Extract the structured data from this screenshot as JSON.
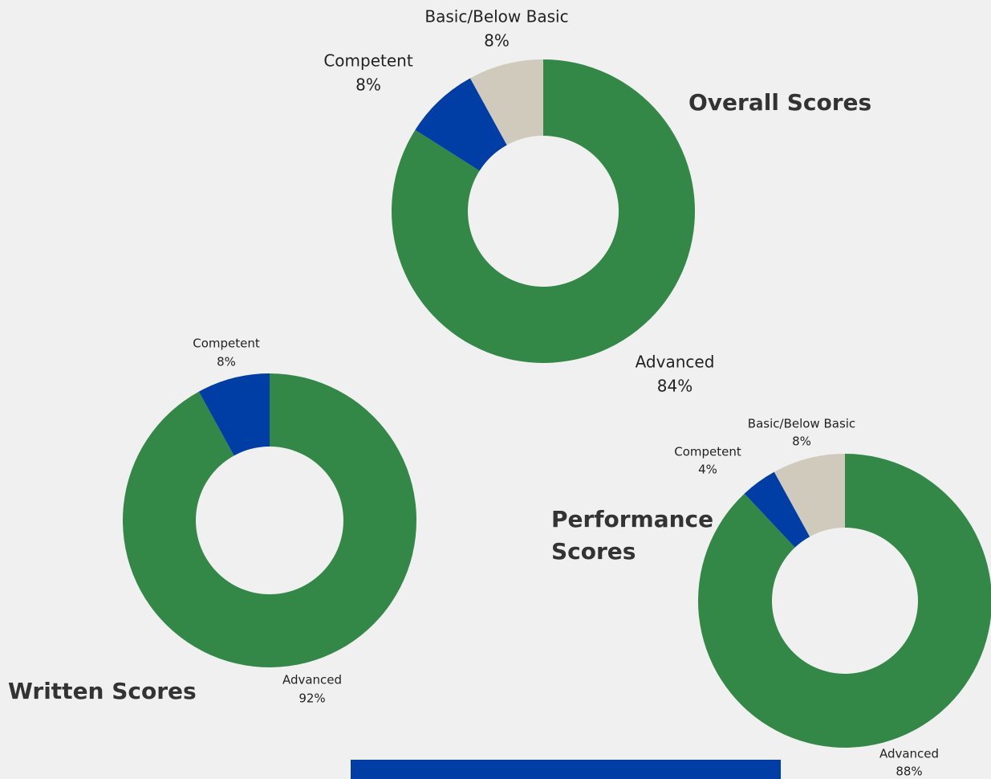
{
  "chart_data": [
    {
      "type": "pie",
      "title": "Overall Scores",
      "categories": [
        "Advanced",
        "Competent",
        "Basic/Below Basic"
      ],
      "values": [
        84,
        8,
        8
      ],
      "value_labels": [
        "84%",
        "8%",
        "8%"
      ],
      "colors": [
        "#338747",
        "#003da5",
        "#d0cabc"
      ]
    },
    {
      "type": "pie",
      "title": "Written Scores",
      "categories": [
        "Advanced",
        "Competent"
      ],
      "values": [
        92,
        8
      ],
      "value_labels": [
        "92%",
        "8%"
      ],
      "colors": [
        "#338747",
        "#003da5"
      ]
    },
    {
      "type": "pie",
      "title": "Performance Scores",
      "categories": [
        "Advanced",
        "Competent",
        "Basic/Below Basic"
      ],
      "values": [
        88,
        4,
        8
      ],
      "value_labels": [
        "88%",
        "4%",
        "8%"
      ],
      "colors": [
        "#338747",
        "#003da5",
        "#d0cabc"
      ]
    }
  ]
}
